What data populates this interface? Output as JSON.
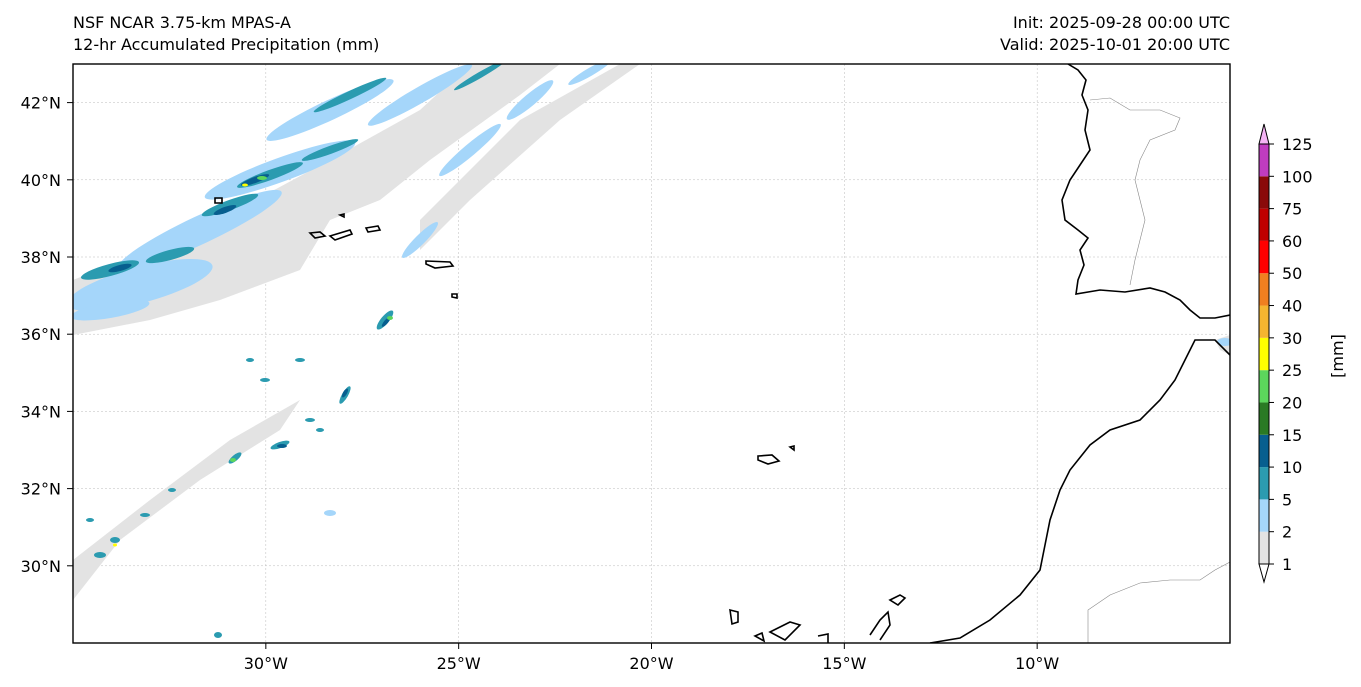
{
  "title": {
    "model": "NSF NCAR 3.75-km MPAS-A",
    "field": "12-hr Accumulated Precipitation (mm)",
    "init": "Init: 2025-09-28 00:00 UTC",
    "valid": "Valid: 2025-10-01 20:00 UTC"
  },
  "map": {
    "lon_range": [
      -35,
      -5
    ],
    "lat_range": [
      28,
      43
    ],
    "lat_ticks": [
      {
        "value": 42,
        "label": "42°N"
      },
      {
        "value": 40,
        "label": "40°N"
      },
      {
        "value": 38,
        "label": "38°N"
      },
      {
        "value": 36,
        "label": "36°N"
      },
      {
        "value": 34,
        "label": "34°N"
      },
      {
        "value": 32,
        "label": "32°N"
      },
      {
        "value": 30,
        "label": "30°N"
      }
    ],
    "lon_ticks": [
      {
        "value": -30,
        "label": "30°W"
      },
      {
        "value": -25,
        "label": "25°W"
      },
      {
        "value": -20,
        "label": "20°W"
      },
      {
        "value": -15,
        "label": "15°W"
      },
      {
        "value": -10,
        "label": "10°W"
      }
    ]
  },
  "colorbar": {
    "unit": "[mm]",
    "levels": [
      "1",
      "2",
      "5",
      "10",
      "15",
      "20",
      "25",
      "30",
      "40",
      "50",
      "60",
      "75",
      "100",
      "125"
    ],
    "colors": [
      "#e3e3e3",
      "#a5d6fa",
      "#2b9bb0",
      "#075f8f",
      "#2a7a24",
      "#5cd65c",
      "#ffff00",
      "#f5b530",
      "#f07f20",
      "#ff0000",
      "#c00000",
      "#8a0a0a",
      "#c03cc0",
      "#f5b4f5"
    ],
    "under_color": "#ffffff",
    "over_color": "#f5b4f5"
  }
}
